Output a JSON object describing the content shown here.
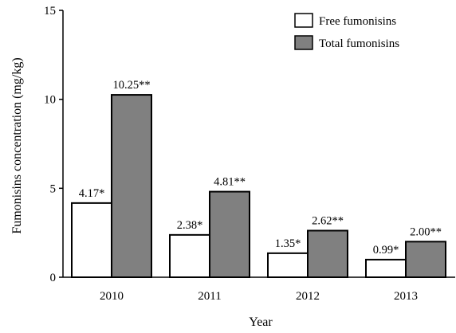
{
  "chart_data": {
    "type": "bar",
    "xlabel": "Year",
    "ylabel": "Fumonisins concentration (mg/kg)",
    "ylim": [
      0,
      15
    ],
    "yticks": [
      0,
      5,
      10,
      15
    ],
    "categories": [
      "2010",
      "2011",
      "2012",
      "2013"
    ],
    "series": [
      {
        "name": "Free fumonisins",
        "color": "#ffffff",
        "values": [
          4.17,
          2.38,
          1.35,
          0.99
        ],
        "labels": [
          "4.17*",
          "2.38*",
          "1.35*",
          "0.99*"
        ]
      },
      {
        "name": "Total fumonisins",
        "color": "#808080",
        "values": [
          10.25,
          4.81,
          2.62,
          2.0
        ],
        "labels": [
          "10.25**",
          "4.81**",
          "2.62**",
          "2.00**"
        ]
      }
    ],
    "grid": false,
    "legend_position": "top-right"
  }
}
